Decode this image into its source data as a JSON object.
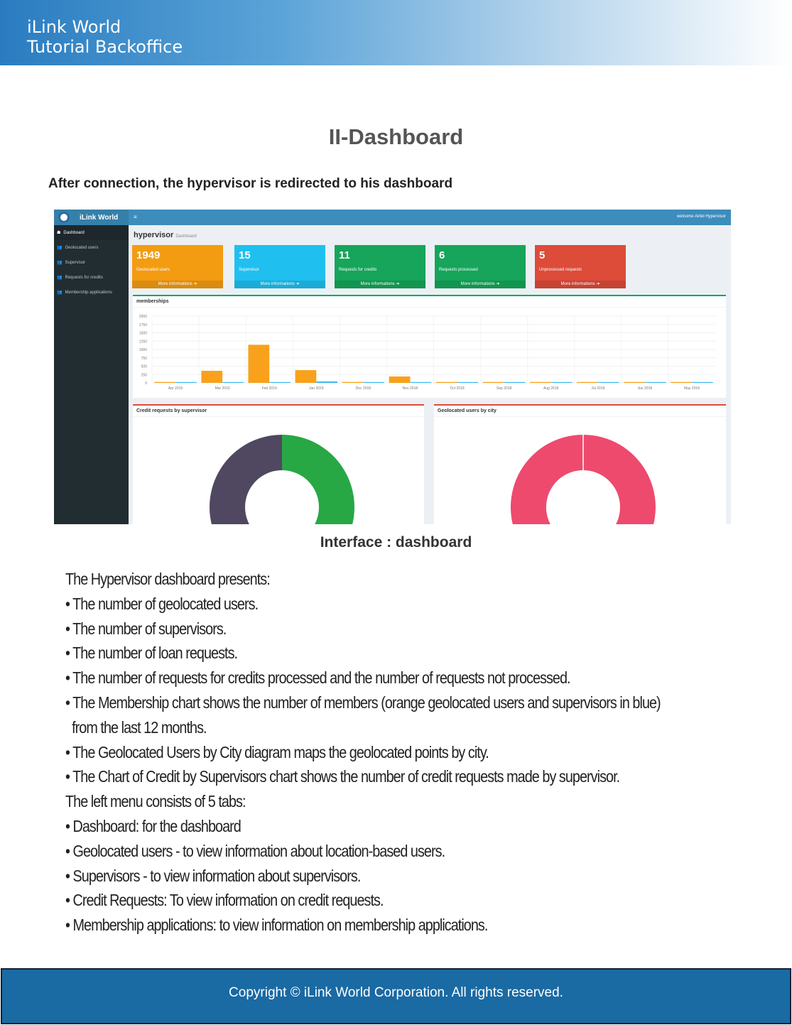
{
  "header": {
    "line1": "iLink World",
    "line2": "Tutorial Backoffice"
  },
  "title": "II-Dashboard",
  "intro": "After connection, the hypervisor is redirected to his dashboard",
  "app": {
    "logo": "iLink World",
    "menu_icon": "hamburger-icon",
    "welcome": "welcome Airtel Hypervisor",
    "page_title": "hypervisor",
    "page_sub": "Dashboard",
    "sidebar": [
      {
        "label": "Dashboard",
        "icon": "dashboard-icon"
      },
      {
        "label": "Geolocated users",
        "icon": "users-icon"
      },
      {
        "label": "Supervisor",
        "icon": "users-icon"
      },
      {
        "label": "Requests for credits",
        "icon": "users-icon"
      },
      {
        "label": "Membership applications",
        "icon": "users-icon"
      }
    ],
    "boxes": [
      {
        "value": "1949",
        "label": "Geolocated users",
        "more": "More informations ➜",
        "color": "#f39c12"
      },
      {
        "value": "15",
        "label": "Supervisor",
        "more": "More informations ➜",
        "color": "#1fc0ef"
      },
      {
        "value": "11",
        "label": "Requests for credits",
        "more": "More informations ➜",
        "color": "#16a55a"
      },
      {
        "value": "6",
        "label": "Requests processed",
        "more": "More informations ➜",
        "color": "#16a55a"
      },
      {
        "value": "5",
        "label": "Unprocessed requests",
        "more": "More informations ➜",
        "color": "#dd4b39"
      }
    ],
    "panels": {
      "memberships": "memberships",
      "credit": "Credit requests by supervisor",
      "geo": "Geolocated users by city"
    }
  },
  "chart_data": {
    "type": "bar",
    "title": "memberships",
    "categories": [
      "Apr 2019",
      "Mar 2019",
      "Feb 2019",
      "Jan 2019",
      "Dec 2018",
      "Nov 2018",
      "Oct 2018",
      "Sep 2018",
      "Aug 2018",
      "Jul 2018",
      "Jun 2018",
      "May 2018"
    ],
    "series": [
      {
        "color": "#f9a11b",
        "values": [
          5,
          340,
          1120,
          360,
          5,
          170,
          5,
          5,
          5,
          5,
          5,
          5
        ]
      },
      {
        "color": "#36b9f0",
        "values": [
          3,
          3,
          3,
          20,
          3,
          3,
          3,
          3,
          3,
          3,
          3,
          3
        ]
      }
    ],
    "yticks": [
      "0",
      "250",
      "500",
      "750",
      "1000",
      "1250",
      "1500",
      "1750",
      "2000"
    ],
    "ylim": [
      0,
      2000
    ],
    "grid": true
  },
  "donuts": {
    "credit": {
      "colors": [
        "#28a745",
        "#4f4860"
      ],
      "fractions": [
        0.5,
        0.5
      ]
    },
    "geo": {
      "colors": [
        "#ee4a6e"
      ],
      "fractions": [
        1
      ]
    }
  },
  "caption": "Interface : dashboard",
  "body": [
    "The Hypervisor dashboard presents:",
    "• The number of geolocated users.",
    "• The number of supervisors.",
    "• The number of loan requests.",
    "• The number of requests for credits processed and the number of requests not processed.",
    "• The Membership chart shows the number of members (orange geolocated users and supervisors in blue)",
    "  from the last 12 months.",
    "• The Geolocated Users by City diagram maps the geolocated points by city.",
    "• The Chart of Credit by Supervisors chart shows the number of credit requests made by supervisor.",
    "The left menu consists of 5 tabs:",
    "• Dashboard: for the dashboard",
    "• Geolocated users - to view information about location-based users.",
    "• Supervisors - to view information about supervisors.",
    "• Credit Requests: To view information on credit requests.",
    "• Membership applications: to view information on membership applications."
  ],
  "footer": "Copyright © iLink World Corporation. All rights reserved."
}
